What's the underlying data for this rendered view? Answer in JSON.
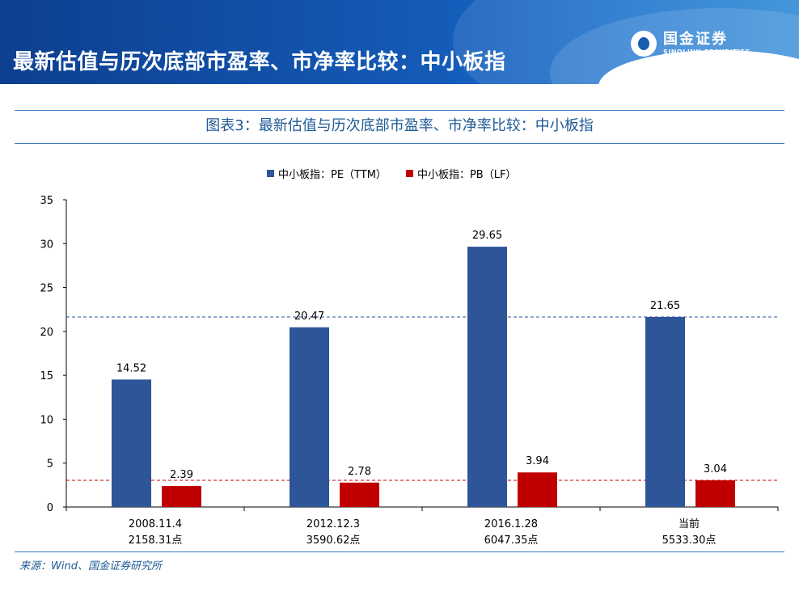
{
  "header": {
    "title": "最新估值与历次底部市盈率、市净率比较：中小板指",
    "logo_cn": "国金证券",
    "logo_en": "SINOLINK SECURITIES"
  },
  "colors": {
    "banner": "#1456b0",
    "pe": "#2e5597",
    "pb": "#c00000",
    "title_text": "#1f5a96"
  },
  "chart_data": {
    "type": "bar",
    "title": "图表3：最新估值与历次底部市盈率、市净率比较：中小板指",
    "categories": [
      [
        "2008.11.4",
        "2158.31点"
      ],
      [
        "2012.12.3",
        "3590.62点"
      ],
      [
        "2016.1.28",
        "6047.35点"
      ],
      [
        "当前",
        "5533.30点"
      ]
    ],
    "series": [
      {
        "name": "中小板指：PE（TTM）",
        "values": [
          14.52,
          20.47,
          29.65,
          21.65
        ],
        "labels": [
          "14.52",
          "20.47",
          "29.65",
          "21.65"
        ]
      },
      {
        "name": "中小板指：PB（LF）",
        "values": [
          2.39,
          2.78,
          3.94,
          3.04
        ],
        "labels": [
          "2.39",
          "2.78",
          "3.94",
          "3.04"
        ]
      }
    ],
    "reference_lines": [
      {
        "value": 21.65,
        "color": "#2e5597",
        "style": "dashed"
      },
      {
        "value": 3.04,
        "color": "#c00000",
        "style": "dashed"
      }
    ],
    "ylim": [
      0,
      35
    ],
    "yticks": [
      "0",
      "5",
      "10",
      "15",
      "20",
      "25",
      "30",
      "35"
    ],
    "legend_position": "top",
    "grid": false
  },
  "source": "来源：Wind、国金证券研究所"
}
